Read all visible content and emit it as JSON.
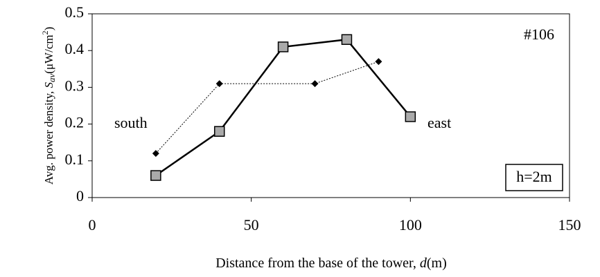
{
  "chart_data": {
    "type": "line",
    "ylabel": [
      "Avg. power density, ",
      "S",
      "av",
      "(μW/cm",
      "2",
      ")"
    ],
    "xlabel": [
      "Distance from the base of the tower, ",
      "d",
      "(m)"
    ],
    "xlim": [
      0,
      150
    ],
    "xticks": [
      0,
      50,
      100,
      150
    ],
    "ylim": [
      0,
      0.5
    ],
    "yticks": [
      0,
      0.1,
      0.2,
      0.3,
      0.4,
      0.5
    ],
    "grid": false,
    "annotations": [
      "#106",
      "h=2m"
    ],
    "series": [
      {
        "name": "south",
        "color": "#000000",
        "style": "dotted",
        "marker": "diamond",
        "x": [
          20,
          40,
          70,
          90
        ],
        "values": [
          0.12,
          0.31,
          0.31,
          0.37
        ]
      },
      {
        "name": "east",
        "color": "#000000",
        "style": "solid",
        "marker": "square",
        "x": [
          20,
          40,
          60,
          80,
          100
        ],
        "values": [
          0.06,
          0.18,
          0.41,
          0.43,
          0.22
        ]
      }
    ]
  }
}
